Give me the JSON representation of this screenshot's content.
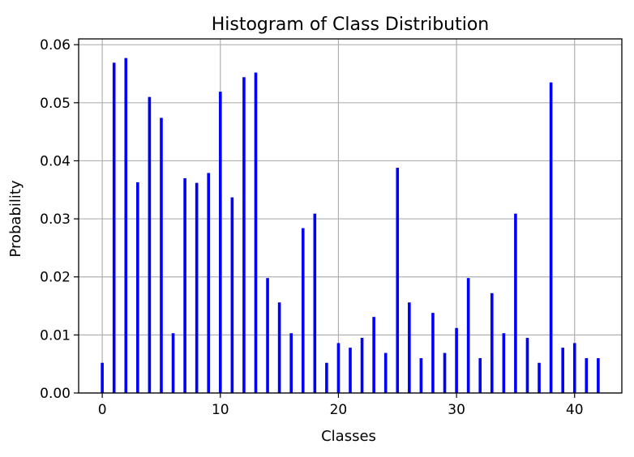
{
  "colors": {
    "bar": "#0000ff",
    "grid": "#b0b0b0",
    "axis": "#000000",
    "background": "#ffffff"
  },
  "chart_data": {
    "type": "bar",
    "title": "Histogram of Class Distribution",
    "xlabel": "Classes",
    "ylabel": "Probability",
    "xlim": [
      -2.0,
      44.0
    ],
    "ylim": [
      0.0,
      0.061
    ],
    "xticks": [
      0,
      10,
      20,
      30,
      40
    ],
    "xtick_labels": [
      "0",
      "10",
      "20",
      "30",
      "40"
    ],
    "yticks": [
      0.0,
      0.01,
      0.02,
      0.03,
      0.04,
      0.05,
      0.06
    ],
    "ytick_labels": [
      "0.00",
      "0.01",
      "0.02",
      "0.03",
      "0.04",
      "0.05",
      "0.06"
    ],
    "grid": true,
    "categories": [
      0,
      1,
      2,
      3,
      4,
      5,
      6,
      7,
      8,
      9,
      10,
      11,
      12,
      13,
      14,
      15,
      16,
      17,
      18,
      19,
      20,
      21,
      22,
      23,
      24,
      25,
      26,
      27,
      28,
      29,
      30,
      31,
      32,
      33,
      34,
      35,
      36,
      37,
      38,
      39,
      40,
      41,
      42
    ],
    "values": [
      0.0052,
      0.0569,
      0.0577,
      0.0363,
      0.051,
      0.0474,
      0.0103,
      0.037,
      0.0362,
      0.0379,
      0.0519,
      0.0337,
      0.0544,
      0.0552,
      0.0198,
      0.0156,
      0.0103,
      0.0284,
      0.0309,
      0.0052,
      0.0086,
      0.0078,
      0.0095,
      0.0131,
      0.0069,
      0.0388,
      0.0156,
      0.006,
      0.0138,
      0.0069,
      0.0112,
      0.0198,
      0.006,
      0.0172,
      0.0103,
      0.0309,
      0.0095,
      0.0052,
      0.0535,
      0.0078,
      0.0086,
      0.006,
      0.006
    ]
  }
}
